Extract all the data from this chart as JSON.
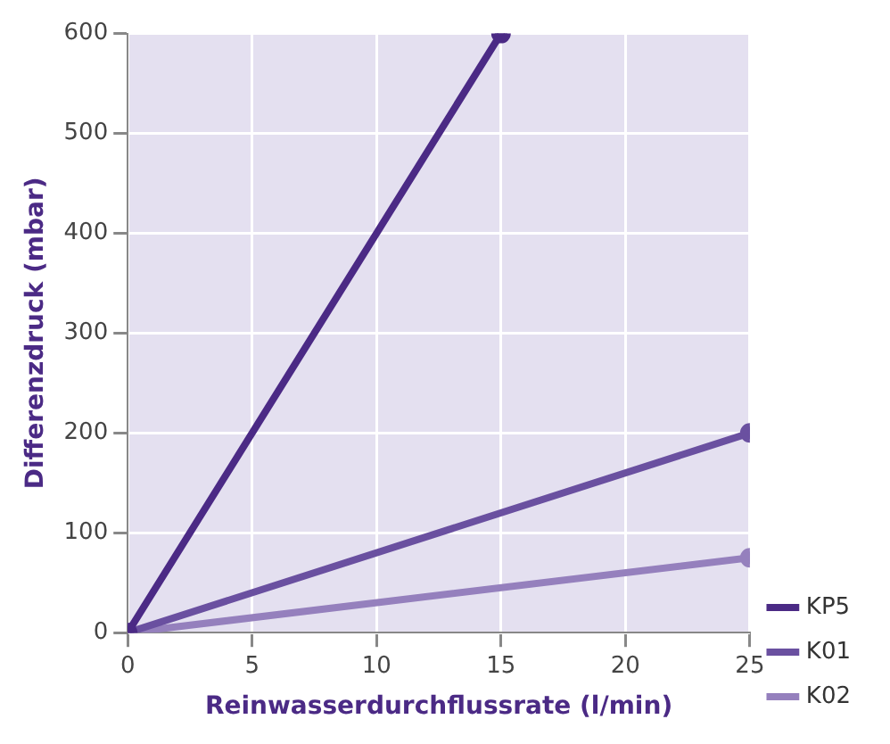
{
  "chart_data": {
    "type": "line",
    "xlabel": "Reinwasserdurchflussrate (l/min)",
    "ylabel": "Differenzdruck (mbar)",
    "xlim": [
      0,
      25
    ],
    "xticks": [
      0,
      5,
      10,
      15,
      20,
      25
    ],
    "ylim": [
      0,
      600
    ],
    "yticks": [
      0,
      100,
      200,
      300,
      400,
      500,
      600
    ],
    "grid": true,
    "legend": "right",
    "marker": "circle",
    "line_style": "solid",
    "series": [
      {
        "name": "KP5",
        "color": "#4b2a85",
        "x": [
          0,
          15
        ],
        "values": [
          0,
          600
        ]
      },
      {
        "name": "K01",
        "color": "#6a50a0",
        "x": [
          0,
          25
        ],
        "values": [
          0,
          200
        ]
      },
      {
        "name": "K02",
        "color": "#9580bd",
        "x": [
          0,
          25
        ],
        "values": [
          0,
          75
        ]
      }
    ]
  }
}
